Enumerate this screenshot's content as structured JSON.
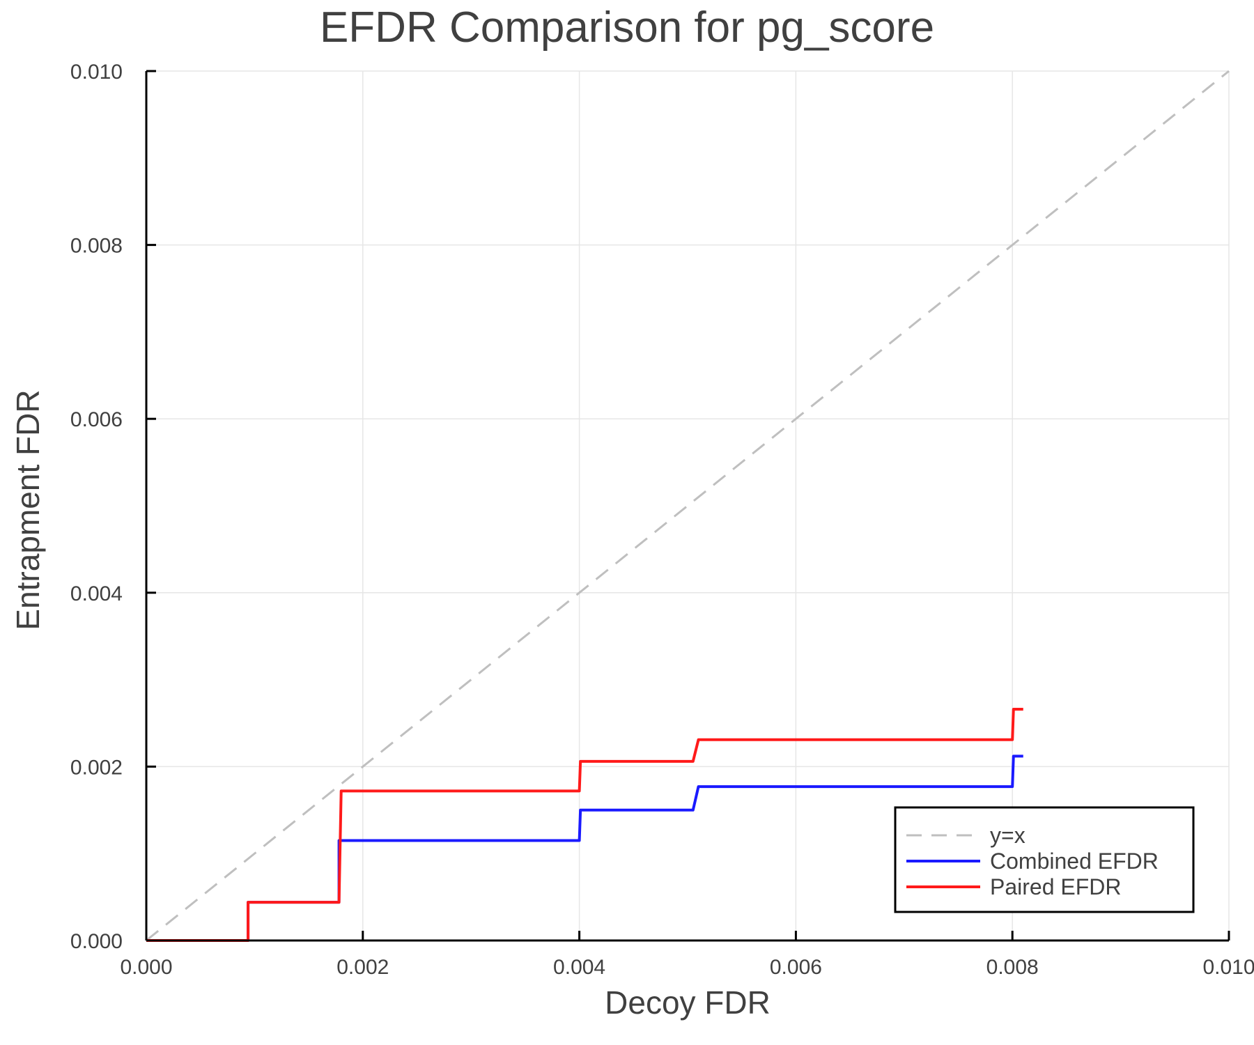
{
  "chart_data": {
    "type": "line",
    "title": "EFDR Comparison for pg_score",
    "xlabel": "Decoy FDR",
    "ylabel": "Entrapment FDR",
    "xlim": [
      0.0,
      0.01
    ],
    "ylim": [
      0.0,
      0.01
    ],
    "xticks": [
      "0.000",
      "0.002",
      "0.004",
      "0.006",
      "0.008",
      "0.010"
    ],
    "yticks": [
      "0.000",
      "0.002",
      "0.004",
      "0.006",
      "0.008",
      "0.010"
    ],
    "grid": true,
    "legend_position": "bottom-right",
    "series": [
      {
        "name": "y=x",
        "color": "#bfbfbf",
        "style": "dashed",
        "x": [
          0.0,
          0.01
        ],
        "y": [
          0.0,
          0.01
        ]
      },
      {
        "name": "Combined EFDR",
        "color": "#1a1aff",
        "style": "solid",
        "x": [
          0.0,
          0.00094,
          0.00094,
          0.00178,
          0.00178,
          0.004,
          0.00401,
          0.00505,
          0.0051,
          0.008,
          0.00801,
          0.0081
        ],
        "y": [
          0.0,
          0.0,
          0.00044,
          0.00044,
          0.00115,
          0.00115,
          0.0015,
          0.0015,
          0.00177,
          0.00177,
          0.00212,
          0.00212
        ]
      },
      {
        "name": "Paired EFDR",
        "color": "#ff1a1a",
        "style": "solid",
        "x": [
          0.0,
          0.00094,
          0.00094,
          0.00178,
          0.0018,
          0.004,
          0.00401,
          0.00505,
          0.0051,
          0.008,
          0.00801,
          0.0081
        ],
        "y": [
          0.0,
          0.0,
          0.00044,
          0.00044,
          0.00172,
          0.00172,
          0.00206,
          0.00206,
          0.00231,
          0.00231,
          0.00266,
          0.00266
        ]
      }
    ]
  }
}
